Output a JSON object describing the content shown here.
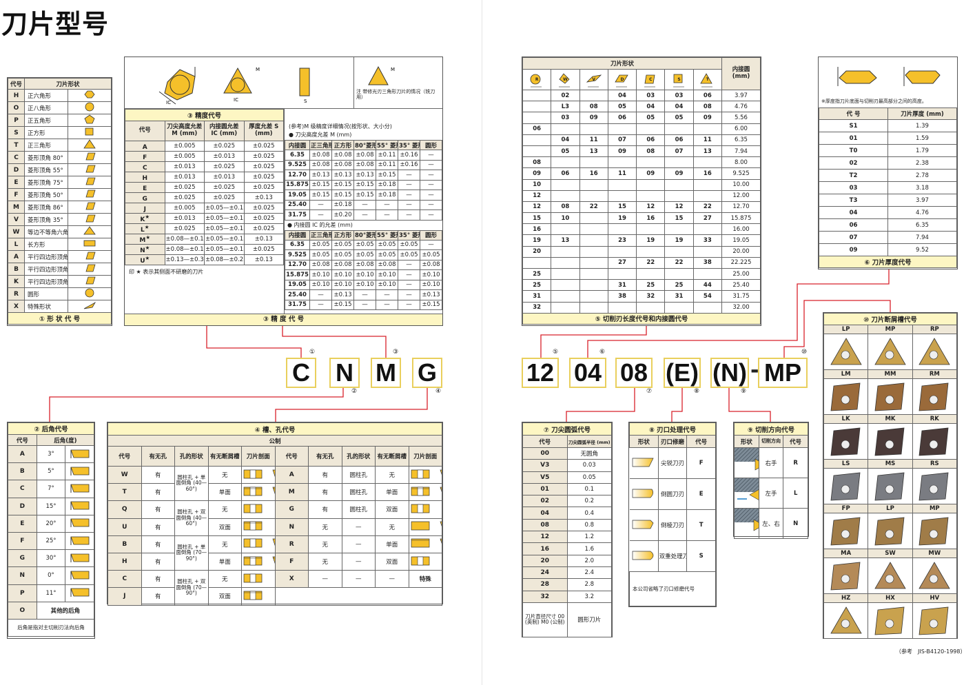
{
  "title": "刀片型号",
  "colors": {
    "accent_yellow": "#f5c02a",
    "title_bg": "#fdf6c3",
    "header_bg": "#efe8d8",
    "line_red": "#d8202a"
  },
  "shape_panel": {
    "headers": [
      "代号",
      "刀片形状"
    ],
    "footer": "① 形 状 代 号",
    "rows": [
      [
        "H",
        "正六角形",
        "hexagon-icon"
      ],
      [
        "O",
        "正八角形",
        "octagon-icon"
      ],
      [
        "P",
        "正五角形",
        "pentagon-icon"
      ],
      [
        "S",
        "正方形",
        "square-icon"
      ],
      [
        "T",
        "正三角形",
        "triangle-icon"
      ],
      [
        "C",
        "菱形顶角 80°",
        "rhombus-80-icon"
      ],
      [
        "D",
        "菱形顶角 55°",
        "rhombus-55-icon"
      ],
      [
        "E",
        "菱形顶角 75°",
        "rhombus-75-icon"
      ],
      [
        "F",
        "菱形顶角 50°",
        "rhombus-50-icon"
      ],
      [
        "M",
        "菱形顶角 86°",
        "rhombus-86-icon"
      ],
      [
        "V",
        "菱形顶角 35°",
        "rhombus-35-icon"
      ],
      [
        "W",
        "等边不等角六角形",
        "trigon-icon"
      ],
      [
        "L",
        "长方形",
        "rectangle-icon"
      ],
      [
        "A",
        "平行四边形顶角 85°",
        "parallelogram-85-icon"
      ],
      [
        "B",
        "平行四边形顶角 82°",
        "parallelogram-82-icon"
      ],
      [
        "K",
        "平行四边形顶角 55°",
        "parallelogram-55-icon"
      ],
      [
        "R",
        "圆形",
        "circle-icon"
      ],
      [
        "X",
        "特殊形状",
        "special-icon"
      ]
    ]
  },
  "precision_panel": {
    "diagram_labels": {
      "ic": "IC",
      "m": "M",
      "s": "S",
      "note": "注 带修光刃三角形刀片的情况（铣刀用）"
    },
    "title": "③ 精度代号",
    "footer": "③ 精 度 代 号",
    "headers": [
      "代号",
      "刀尖高度允差M (mm)",
      "内接圆允差 IC (mm)",
      "厚度允差 S (mm)"
    ],
    "rows": [
      [
        "A",
        "±0.005",
        "±0.025",
        "±0.025",
        ""
      ],
      [
        "F",
        "±0.005",
        "±0.013",
        "±0.025",
        ""
      ],
      [
        "C",
        "±0.013",
        "±0.025",
        "±0.025",
        ""
      ],
      [
        "H",
        "±0.013",
        "±0.013",
        "±0.025",
        ""
      ],
      [
        "E",
        "±0.025",
        "±0.025",
        "±0.025",
        ""
      ],
      [
        "G",
        "±0.025",
        "±0.025",
        "±0.13",
        ""
      ],
      [
        "J",
        "±0.005",
        "±0.05—±0.15",
        "±0.025",
        ""
      ],
      [
        "K",
        "±0.013",
        "±0.05—±0.15",
        "±0.025",
        "★"
      ],
      [
        "L",
        "±0.025",
        "±0.05—±0.15",
        "±0.025",
        "★"
      ],
      [
        "M",
        "±0.08—±0.18",
        "±0.05—±0.15",
        "±0.13",
        "★"
      ],
      [
        "N",
        "±0.08—±0.18",
        "±0.05—±0.15",
        "±0.025",
        "★"
      ],
      [
        "U",
        "±0.13—±0.38",
        "±0.08—±0.25",
        "±0.13",
        "★"
      ]
    ],
    "footnote": "印 ★ 表示其侧面不研磨的刀片",
    "ref_note": "(参考)M 级精度详细情况(按形状、大小分)",
    "m_title": "● 刀尖高度允差 M (mm)",
    "ic_title": "● 内接圆 IC 的允差 (mm)",
    "detail_headers": [
      "内接圆",
      "正三角形",
      "正方形",
      "80°菱形",
      "55° 菱形",
      "35° 菱形",
      "圆形"
    ],
    "m_rows": [
      [
        "6.35",
        "±0.08",
        "±0.08",
        "±0.08",
        "±0.11",
        "±0.16",
        "—"
      ],
      [
        "9.525",
        "±0.08",
        "±0.08",
        "±0.08",
        "±0.11",
        "±0.16",
        "—"
      ],
      [
        "12.70",
        "±0.13",
        "±0.13",
        "±0.13",
        "±0.15",
        "—",
        "—"
      ],
      [
        "15.875",
        "±0.15",
        "±0.15",
        "±0.15",
        "±0.18",
        "—",
        "—"
      ],
      [
        "19.05",
        "±0.15",
        "±0.15",
        "±0.15",
        "±0.18",
        "—",
        "—"
      ],
      [
        "25.40",
        "—",
        "±0.18",
        "—",
        "—",
        "—",
        "—"
      ],
      [
        "31.75",
        "—",
        "±0.20",
        "—",
        "—",
        "—",
        "—"
      ]
    ],
    "ic_rows": [
      [
        "6.35",
        "±0.05",
        "±0.05",
        "±0.05",
        "±0.05",
        "±0.05",
        "—"
      ],
      [
        "9.525",
        "±0.05",
        "±0.05",
        "±0.05",
        "±0.05",
        "±0.05",
        "±0.05"
      ],
      [
        "12.70",
        "±0.08",
        "±0.08",
        "±0.08",
        "±0.08",
        "—",
        "±0.08"
      ],
      [
        "15.875",
        "±0.10",
        "±0.10",
        "±0.10",
        "±0.10",
        "—",
        "±0.10"
      ],
      [
        "19.05",
        "±0.10",
        "±0.10",
        "±0.10",
        "±0.10",
        "—",
        "±0.10"
      ],
      [
        "25.40",
        "—",
        "±0.13",
        "—",
        "—",
        "—",
        "±0.13"
      ],
      [
        "31.75",
        "—",
        "±0.15",
        "—",
        "—",
        "—",
        "±0.15"
      ]
    ]
  },
  "left_code": {
    "letters": [
      "C",
      "N",
      "M",
      "G"
    ],
    "markers": [
      "①",
      "③",
      "②",
      "④"
    ]
  },
  "clearance_panel": {
    "title": "② 后角代号",
    "headers": [
      "代号",
      "后角(度)"
    ],
    "rows": [
      [
        "A",
        "3°"
      ],
      [
        "B",
        "5°"
      ],
      [
        "C",
        "7°"
      ],
      [
        "D",
        "15°"
      ],
      [
        "E",
        "20°"
      ],
      [
        "F",
        "25°"
      ],
      [
        "G",
        "30°"
      ],
      [
        "N",
        "0°"
      ],
      [
        "P",
        "11°"
      ]
    ],
    "other": [
      "O",
      "其他的后角"
    ],
    "footnote": "后角是指对主切削刃法向后角"
  },
  "hole_panel": {
    "title": "④ 槽、孔代号",
    "subtitle": "公制",
    "headers": [
      "代号",
      "有无孔",
      "孔的形状",
      "有无断屑槽",
      "刀片剖面"
    ],
    "left_rows": [
      [
        "W",
        "有",
        "圆柱孔 + 单面倒角 (40—60°)",
        "无",
        "straight-tapered"
      ],
      [
        "T",
        "有",
        "",
        "单面",
        "straight-tapered-groove"
      ],
      [
        "Q",
        "有",
        "圆柱孔 + 双面倒角 (40—60°)",
        "无",
        "double-chamfer"
      ],
      [
        "U",
        "有",
        "",
        "双面",
        "double-chamfer-groove"
      ],
      [
        "B",
        "有",
        "圆柱孔 + 单面倒角 (70—90°)",
        "无",
        "straight-tapered"
      ],
      [
        "H",
        "有",
        "",
        "单面",
        "straight-tapered-groove"
      ],
      [
        "C",
        "有",
        "圆柱孔 + 双面倒角 (70—90°)",
        "无",
        "double-chamfer"
      ],
      [
        "J",
        "有",
        "",
        "双面",
        "double-chamfer-groove"
      ]
    ],
    "right_rows": [
      [
        "A",
        "有",
        "圆柱孔",
        "无",
        "hole-pair"
      ],
      [
        "M",
        "有",
        "圆柱孔",
        "单面",
        "hole-pair-groove"
      ],
      [
        "G",
        "有",
        "圆柱孔",
        "双面",
        "hole-double"
      ],
      [
        "N",
        "无",
        "—",
        "无",
        "solid-pair"
      ],
      [
        "R",
        "无",
        "—",
        "单面",
        "solid-pair-groove"
      ],
      [
        "F",
        "无",
        "—",
        "双面",
        "solid-double"
      ],
      [
        "X",
        "—",
        "—",
        "—",
        "特殊"
      ]
    ]
  },
  "size_panel": {
    "group_header": "刀片形状",
    "ic_header": "内接圆 (mm)",
    "footer": "⑤ 切削刃长度代号和内接圆代号",
    "shapes": [
      "R",
      "W",
      "V",
      "D",
      "C",
      "S",
      "T"
    ],
    "rows": [
      [
        "",
        "02",
        "",
        "04",
        "03",
        "03",
        "06",
        "3.97"
      ],
      [
        "",
        "L3",
        "08",
        "05",
        "04",
        "04",
        "08",
        "4.76"
      ],
      [
        "",
        "03",
        "09",
        "06",
        "05",
        "05",
        "09",
        "5.56"
      ],
      [
        "06",
        "",
        "",
        "",
        "",
        "",
        "",
        "6.00"
      ],
      [
        "",
        "04",
        "11",
        "07",
        "06",
        "06",
        "11",
        "6.35"
      ],
      [
        "",
        "05",
        "13",
        "09",
        "08",
        "07",
        "13",
        "7.94"
      ],
      [
        "08",
        "",
        "",
        "",
        "",
        "",
        "",
        "8.00"
      ],
      [
        "09",
        "06",
        "16",
        "11",
        "09",
        "09",
        "16",
        "9.525"
      ],
      [
        "10",
        "",
        "",
        "",
        "",
        "",
        "",
        "10.00"
      ],
      [
        "12",
        "",
        "",
        "",
        "",
        "",
        "",
        "12.00"
      ],
      [
        "12",
        "08",
        "22",
        "15",
        "12",
        "12",
        "22",
        "12.70"
      ],
      [
        "15",
        "10",
        "",
        "19",
        "16",
        "15",
        "27",
        "15.875"
      ],
      [
        "16",
        "",
        "",
        "",
        "",
        "",
        "",
        "16.00"
      ],
      [
        "19",
        "13",
        "",
        "23",
        "19",
        "19",
        "33",
        "19.05"
      ],
      [
        "20",
        "",
        "",
        "",
        "",
        "",
        "",
        "20.00"
      ],
      [
        "",
        "",
        "",
        "27",
        "22",
        "22",
        "38",
        "22.225"
      ],
      [
        "25",
        "",
        "",
        "",
        "",
        "",
        "",
        "25.00"
      ],
      [
        "25",
        "",
        "",
        "31",
        "25",
        "25",
        "44",
        "25.40"
      ],
      [
        "31",
        "",
        "",
        "38",
        "32",
        "31",
        "54",
        "31.75"
      ],
      [
        "32",
        "",
        "",
        "",
        "",
        "",
        "",
        "32.00"
      ]
    ]
  },
  "thickness_panel": {
    "note": "※厚度指刀片底面与切削刃最高部分之间的高度。",
    "headers": [
      "代 号",
      "刀片厚度 (mm)"
    ],
    "footer": "⑥ 刀片厚度代号",
    "rows": [
      [
        "S1",
        "1.39"
      ],
      [
        "01",
        "1.59"
      ],
      [
        "T0",
        "1.79"
      ],
      [
        "02",
        "2.38"
      ],
      [
        "T2",
        "2.78"
      ],
      [
        "03",
        "3.18"
      ],
      [
        "T3",
        "3.97"
      ],
      [
        "04",
        "4.76"
      ],
      [
        "06",
        "6.35"
      ],
      [
        "07",
        "7.94"
      ],
      [
        "09",
        "9.52"
      ]
    ]
  },
  "right_code": {
    "parts": [
      "12",
      "04",
      "08",
      "(E)",
      "(N)",
      "-",
      "MP"
    ],
    "markers": [
      "⑤",
      "⑥",
      "⑦",
      "⑧",
      "⑨",
      "⑩"
    ]
  },
  "nose_panel": {
    "title": "⑦ 刀尖圆弧代号",
    "headers": [
      "代号",
      "刀尖圆弧半径 (mm)"
    ],
    "rows": [
      [
        "00",
        "无圆角"
      ],
      [
        "V3",
        "0.03"
      ],
      [
        "V5",
        "0.05"
      ],
      [
        "01",
        "0.1"
      ],
      [
        "02",
        "0.2"
      ],
      [
        "04",
        "0.4"
      ],
      [
        "08",
        "0.8"
      ],
      [
        "12",
        "1.2"
      ],
      [
        "16",
        "1.6"
      ],
      [
        "20",
        "2.0"
      ],
      [
        "24",
        "2.4"
      ],
      [
        "28",
        "2.8"
      ],
      [
        "32",
        "3.2"
      ]
    ],
    "last": [
      "刀片直径尺寸 00 (英制) M0 (公制)",
      "圆形刀片"
    ]
  },
  "edge_panel": {
    "title": "⑧ 刃口处理代号",
    "headers": [
      "形状",
      "刃口修磨",
      "代号"
    ],
    "rows": [
      [
        "sharp-edge-icon",
        "尖锐刀刃",
        "F"
      ],
      [
        "honed-edge-icon",
        "倒圆刀刃",
        "E"
      ],
      [
        "chamfered-edge-icon",
        "倒棱刀刃",
        "T"
      ],
      [
        "double-treated-edge-icon",
        "双重处理刀刃",
        "S"
      ]
    ],
    "note": "本公司省略了刃口修磨代号"
  },
  "direction_panel": {
    "title": "⑨ 切削方向代号",
    "headers": [
      "形状",
      "切削方向",
      "代号"
    ],
    "rows": [
      [
        "right-hand-icon",
        "右手",
        "R"
      ],
      [
        "left-hand-icon",
        "左手",
        "L"
      ],
      [
        "neutral-icon",
        "左、右",
        "N"
      ]
    ]
  },
  "chipbreaker_panel": {
    "title": "⑩ 刀片断屑槽代号",
    "rows": [
      {
        "labels": [
          "LP",
          "MP",
          "RP"
        ],
        "shape": "triangle",
        "color": "#c9a24e"
      },
      {
        "labels": [
          "LM",
          "MM",
          "RM"
        ],
        "shape": "rhombus",
        "color": "#9a6a3a"
      },
      {
        "labels": [
          "LK",
          "MK",
          "RK"
        ],
        "shape": "rhombus",
        "color": "#4a3a38"
      },
      {
        "labels": [
          "LS",
          "MS",
          "RS"
        ],
        "shape": "rhombus",
        "color": "#7a7c82"
      },
      {
        "labels": [
          "FP",
          "LP",
          "MP"
        ],
        "shape": "rhombus",
        "color": "#a07c48"
      },
      {
        "labels": [
          "MA",
          "SW",
          "MW"
        ],
        "shape": "mixed",
        "color": "#b48a58"
      },
      {
        "labels": [
          "HZ",
          "HX",
          "HV"
        ],
        "shape": "mixed2",
        "color": "#c9a24e"
      }
    ]
  },
  "reference": "（参考　JIS-B4120-1998）"
}
